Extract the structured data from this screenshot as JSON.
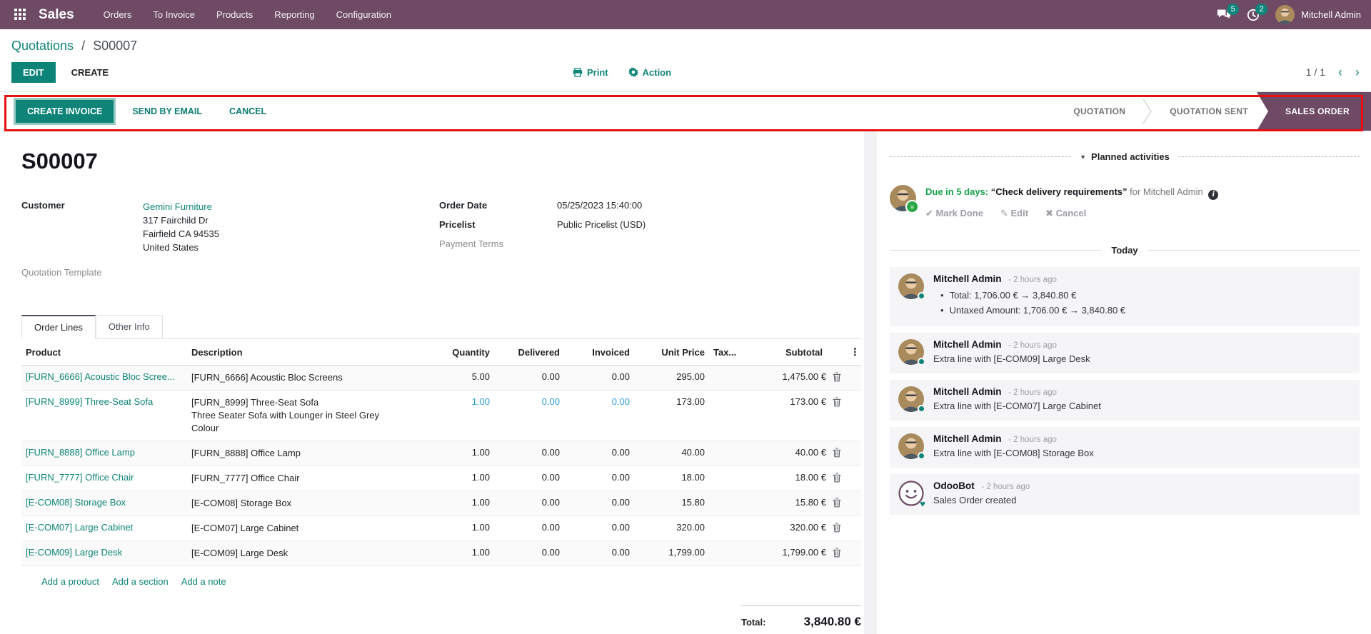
{
  "nav": {
    "app_name": "Sales",
    "menus": [
      "Orders",
      "To Invoice",
      "Products",
      "Reporting",
      "Configuration"
    ],
    "messages_badge": "5",
    "activities_badge": "2",
    "user_name": "Mitchell Admin"
  },
  "control_panel": {
    "breadcrumb_parent": "Quotations",
    "breadcrumb_sep": "/",
    "breadcrumb_current": "S00007",
    "edit_label": "EDIT",
    "create_label": "CREATE",
    "print_label": "Print",
    "action_label": "Action",
    "pager": "1 / 1"
  },
  "statusbar": {
    "create_invoice_label": "CREATE INVOICE",
    "send_by_email_label": "SEND BY EMAIL",
    "cancel_label": "CANCEL",
    "stages": [
      {
        "label": "QUOTATION",
        "active": false
      },
      {
        "label": "QUOTATION SENT",
        "active": false
      },
      {
        "label": "SALES ORDER",
        "active": true
      }
    ]
  },
  "sheet": {
    "title": "S00007",
    "customer_label": "Customer",
    "customer_name": "Gemini Furniture",
    "customer_address": [
      "317 Fairchild Dr",
      "Fairfield CA 94535",
      "United States"
    ],
    "quotation_template_label": "Quotation Template",
    "order_date_label": "Order Date",
    "order_date_value": "05/25/2023 15:40:00",
    "pricelist_label": "Pricelist",
    "pricelist_value": "Public Pricelist (USD)",
    "payment_terms_label": "Payment Terms",
    "tabs": [
      {
        "label": "Order Lines",
        "active": true
      },
      {
        "label": "Other Info",
        "active": false
      }
    ],
    "columns": [
      "Product",
      "Description",
      "Quantity",
      "Delivered",
      "Invoiced",
      "Unit Price",
      "Tax...",
      "Subtotal"
    ],
    "rows": [
      {
        "product": "[FURN_6666] Acoustic Bloc Scree...",
        "description": [
          "[FURN_6666] Acoustic Bloc Screens"
        ],
        "quantity": "5.00",
        "delivered": "0.00",
        "invoiced": "0.00",
        "unit_price": "295.00",
        "tax": "",
        "subtotal": "1,475.00 €",
        "edited": false
      },
      {
        "product": "[FURN_8999] Three-Seat Sofa",
        "description": [
          "[FURN_8999] Three-Seat Sofa",
          "Three Seater Sofa with Lounger in Steel Grey",
          "Colour"
        ],
        "quantity": "1.00",
        "delivered": "0.00",
        "invoiced": "0.00",
        "unit_price": "173.00",
        "tax": "",
        "subtotal": "173.00 €",
        "edited": true
      },
      {
        "product": "[FURN_8888] Office Lamp",
        "description": [
          "[FURN_8888] Office Lamp"
        ],
        "quantity": "1.00",
        "delivered": "0.00",
        "invoiced": "0.00",
        "unit_price": "40.00",
        "tax": "",
        "subtotal": "40.00 €",
        "edited": false
      },
      {
        "product": "[FURN_7777] Office Chair",
        "description": [
          "[FURN_7777] Office Chair"
        ],
        "quantity": "1.00",
        "delivered": "0.00",
        "invoiced": "0.00",
        "unit_price": "18.00",
        "tax": "",
        "subtotal": "18.00 €",
        "edited": false
      },
      {
        "product": "[E-COM08] Storage Box",
        "description": [
          "[E-COM08] Storage Box"
        ],
        "quantity": "1.00",
        "delivered": "0.00",
        "invoiced": "0.00",
        "unit_price": "15.80",
        "tax": "",
        "subtotal": "15.80 €",
        "edited": false
      },
      {
        "product": "[E-COM07] Large Cabinet",
        "description": [
          "[E-COM07] Large Cabinet"
        ],
        "quantity": "1.00",
        "delivered": "0.00",
        "invoiced": "0.00",
        "unit_price": "320.00",
        "tax": "",
        "subtotal": "320.00 €",
        "edited": false
      },
      {
        "product": "[E-COM09] Large Desk",
        "description": [
          "[E-COM09] Large Desk"
        ],
        "quantity": "1.00",
        "delivered": "0.00",
        "invoiced": "0.00",
        "unit_price": "1,799.00",
        "tax": "",
        "subtotal": "1,799.00 €",
        "edited": false
      }
    ],
    "footer_links": [
      "Add a product",
      "Add a section",
      "Add a note"
    ],
    "total_label": "Total:",
    "total_value": "3,840.80 €"
  },
  "chatter": {
    "planned_activities_label": "Planned activities",
    "activity": {
      "due_text": "Due in 5 days:",
      "title": "“Check delivery requirements”",
      "for_text": "for Mitchell Admin",
      "mark_done_label": "Mark Done",
      "edit_label": "Edit",
      "cancel_label": "Cancel"
    },
    "today_label": "Today",
    "messages": [
      {
        "author": "Mitchell Admin",
        "time": "- 2 hours ago",
        "bot": false,
        "bullets": [
          "Total: 1,706.00 € → 3,840.80 €",
          "Untaxed Amount: 1,706.00 € → 3,840.80 €"
        ]
      },
      {
        "author": "Mitchell Admin",
        "time": "- 2 hours ago",
        "bot": false,
        "text": "Extra line with [E-COM09] Large Desk"
      },
      {
        "author": "Mitchell Admin",
        "time": "- 2 hours ago",
        "bot": false,
        "text": "Extra line with [E-COM07] Large Cabinet"
      },
      {
        "author": "Mitchell Admin",
        "time": "- 2 hours ago",
        "bot": false,
        "text": "Extra line with [E-COM08] Storage Box"
      },
      {
        "author": "OdooBot",
        "time": "- 2 hours ago",
        "bot": true,
        "text": "Sales Order created"
      }
    ]
  },
  "colors": {
    "nav_purple": "#6e4a64",
    "primary_teal": "#0e8478",
    "badge_teal": "#0f847b",
    "edited_blue": "#2f9bd8",
    "due_green": "#18a34b",
    "annotation_red": "#e8100e"
  }
}
